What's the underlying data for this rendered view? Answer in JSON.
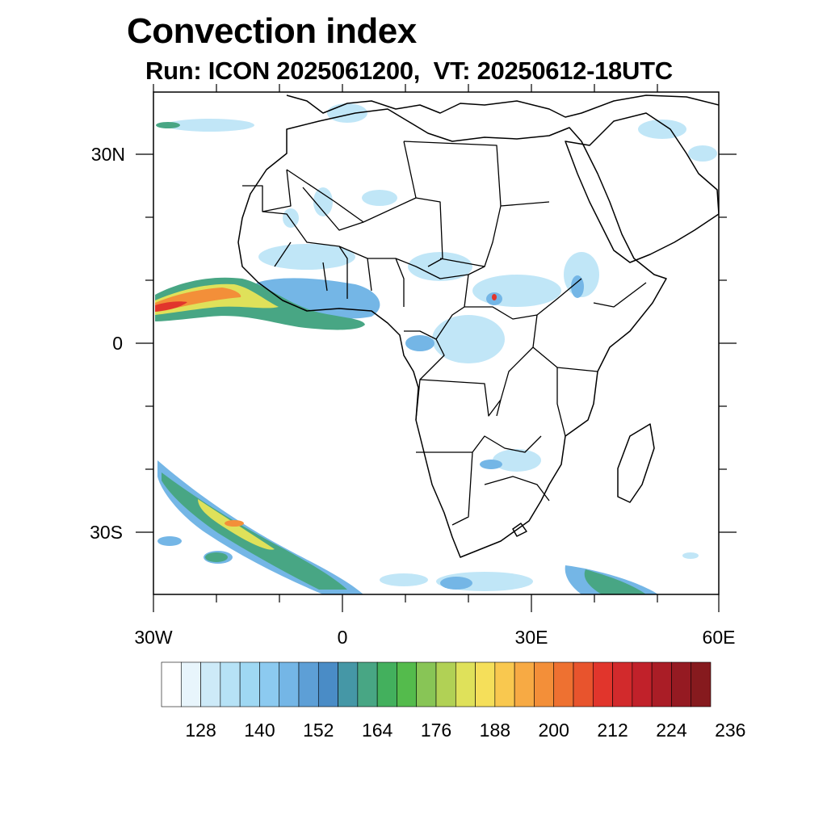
{
  "title": "Convection index",
  "subtitle": "Run: ICON 2025061200,  VT: 20250612-18UTC",
  "axes": {
    "lat_labels": [
      "30N",
      "0",
      "30S"
    ],
    "lon_labels": [
      "30W",
      "0",
      "30E",
      "60E"
    ]
  },
  "colorbar": {
    "labels": [
      "128",
      "140",
      "152",
      "164",
      "176",
      "188",
      "200",
      "212",
      "224",
      "236"
    ],
    "colors": [
      "#ffffff",
      "#e8f5fc",
      "#cdeaf8",
      "#b6e2f6",
      "#9fd8f3",
      "#8ccaf0",
      "#74b6e6",
      "#5d9fd6",
      "#4a8cc6",
      "#4597a6",
      "#48a684",
      "#43b05d",
      "#54bb4c",
      "#88c556",
      "#b1d155",
      "#dfe15a",
      "#f5df5a",
      "#f9c84f",
      "#f7aa44",
      "#f38f39",
      "#ee7131",
      "#e8542d",
      "#e1352c",
      "#d22a2c",
      "#c1212a",
      "#aa1d26",
      "#951a22",
      "#861a1e"
    ]
  }
}
